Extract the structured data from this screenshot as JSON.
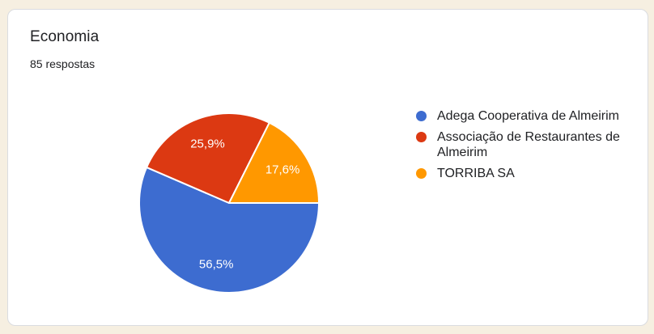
{
  "theme": {
    "page_background": "#F6EFE1",
    "card_background": "#FFFFFF",
    "card_border": "#DADCE0",
    "text_color": "#202124",
    "slice_label_color": "#FFFFFF"
  },
  "card": {
    "title": "Economia",
    "response_count": "85 respostas"
  },
  "chart_data": {
    "type": "pie",
    "title": "Economia",
    "total_responses_label": "85 respostas",
    "legend_position": "right",
    "start_angle_deg": 0,
    "direction": "clockwise",
    "slices": [
      {
        "label": "Adega Cooperativa de Almeirim",
        "percent": 56.5,
        "percent_label": "56,5%",
        "color": "#3D6CD0"
      },
      {
        "label": "Associação de Restaurantes de Almeirim",
        "percent": 25.9,
        "percent_label": "25,9%",
        "color": "#DC3912"
      },
      {
        "label": "TORRIBA SA",
        "percent": 17.6,
        "percent_label": "17,6%",
        "color": "#FF9800"
      }
    ]
  }
}
